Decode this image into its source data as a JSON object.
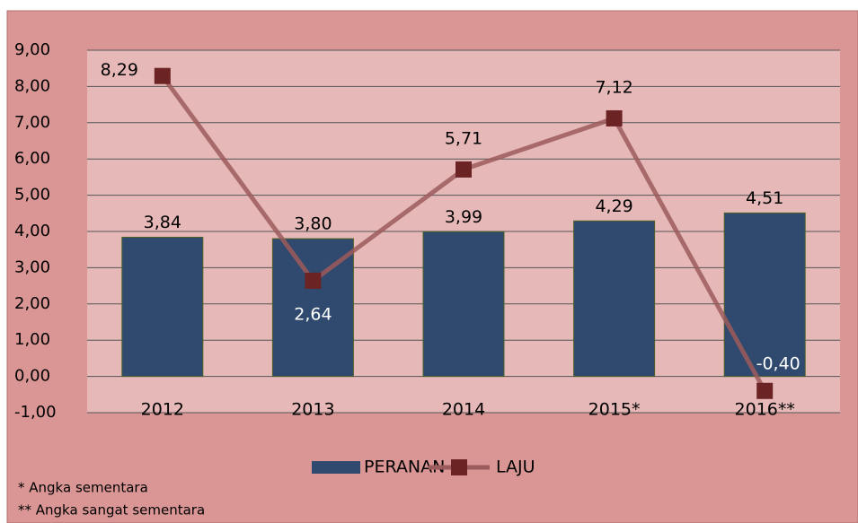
{
  "chart_data": {
    "type": "bar-line",
    "categories": [
      "2012",
      "2013",
      "2014",
      "2015*",
      "2016**"
    ],
    "series": [
      {
        "name": "PERANAN",
        "type": "bar",
        "color": "#2f4a6e",
        "values": [
          3.84,
          3.8,
          3.99,
          4.29,
          4.51
        ],
        "value_labels": [
          "3,84",
          "3,80",
          "3,99",
          "4,29",
          "4,51"
        ]
      },
      {
        "name": "LAJU",
        "type": "line",
        "color": "#9c5b5c",
        "marker_color": "#6b2323",
        "values": [
          8.29,
          2.64,
          5.71,
          7.12,
          -0.4
        ],
        "value_labels": [
          "8,29",
          "2,64",
          "5,71",
          "7,12",
          "-0,40"
        ]
      }
    ],
    "ylim": [
      -1,
      9
    ],
    "yticks": [
      {
        "value": -1,
        "label": "-1,00"
      },
      {
        "value": 0,
        "label": "0,00"
      },
      {
        "value": 1,
        "label": "1,00"
      },
      {
        "value": 2,
        "label": "2,00"
      },
      {
        "value": 3,
        "label": "3,00"
      },
      {
        "value": 4,
        "label": "4,00"
      },
      {
        "value": 5,
        "label": "5,00"
      },
      {
        "value": 6,
        "label": "6,00"
      },
      {
        "value": 7,
        "label": "7,00"
      },
      {
        "value": 8,
        "label": "8,00"
      },
      {
        "value": 9,
        "label": "9,00"
      }
    ],
    "grid": true,
    "legend": "bottom",
    "annotations": [
      "* Angka sementara",
      "** Angka sangat sementara"
    ]
  }
}
